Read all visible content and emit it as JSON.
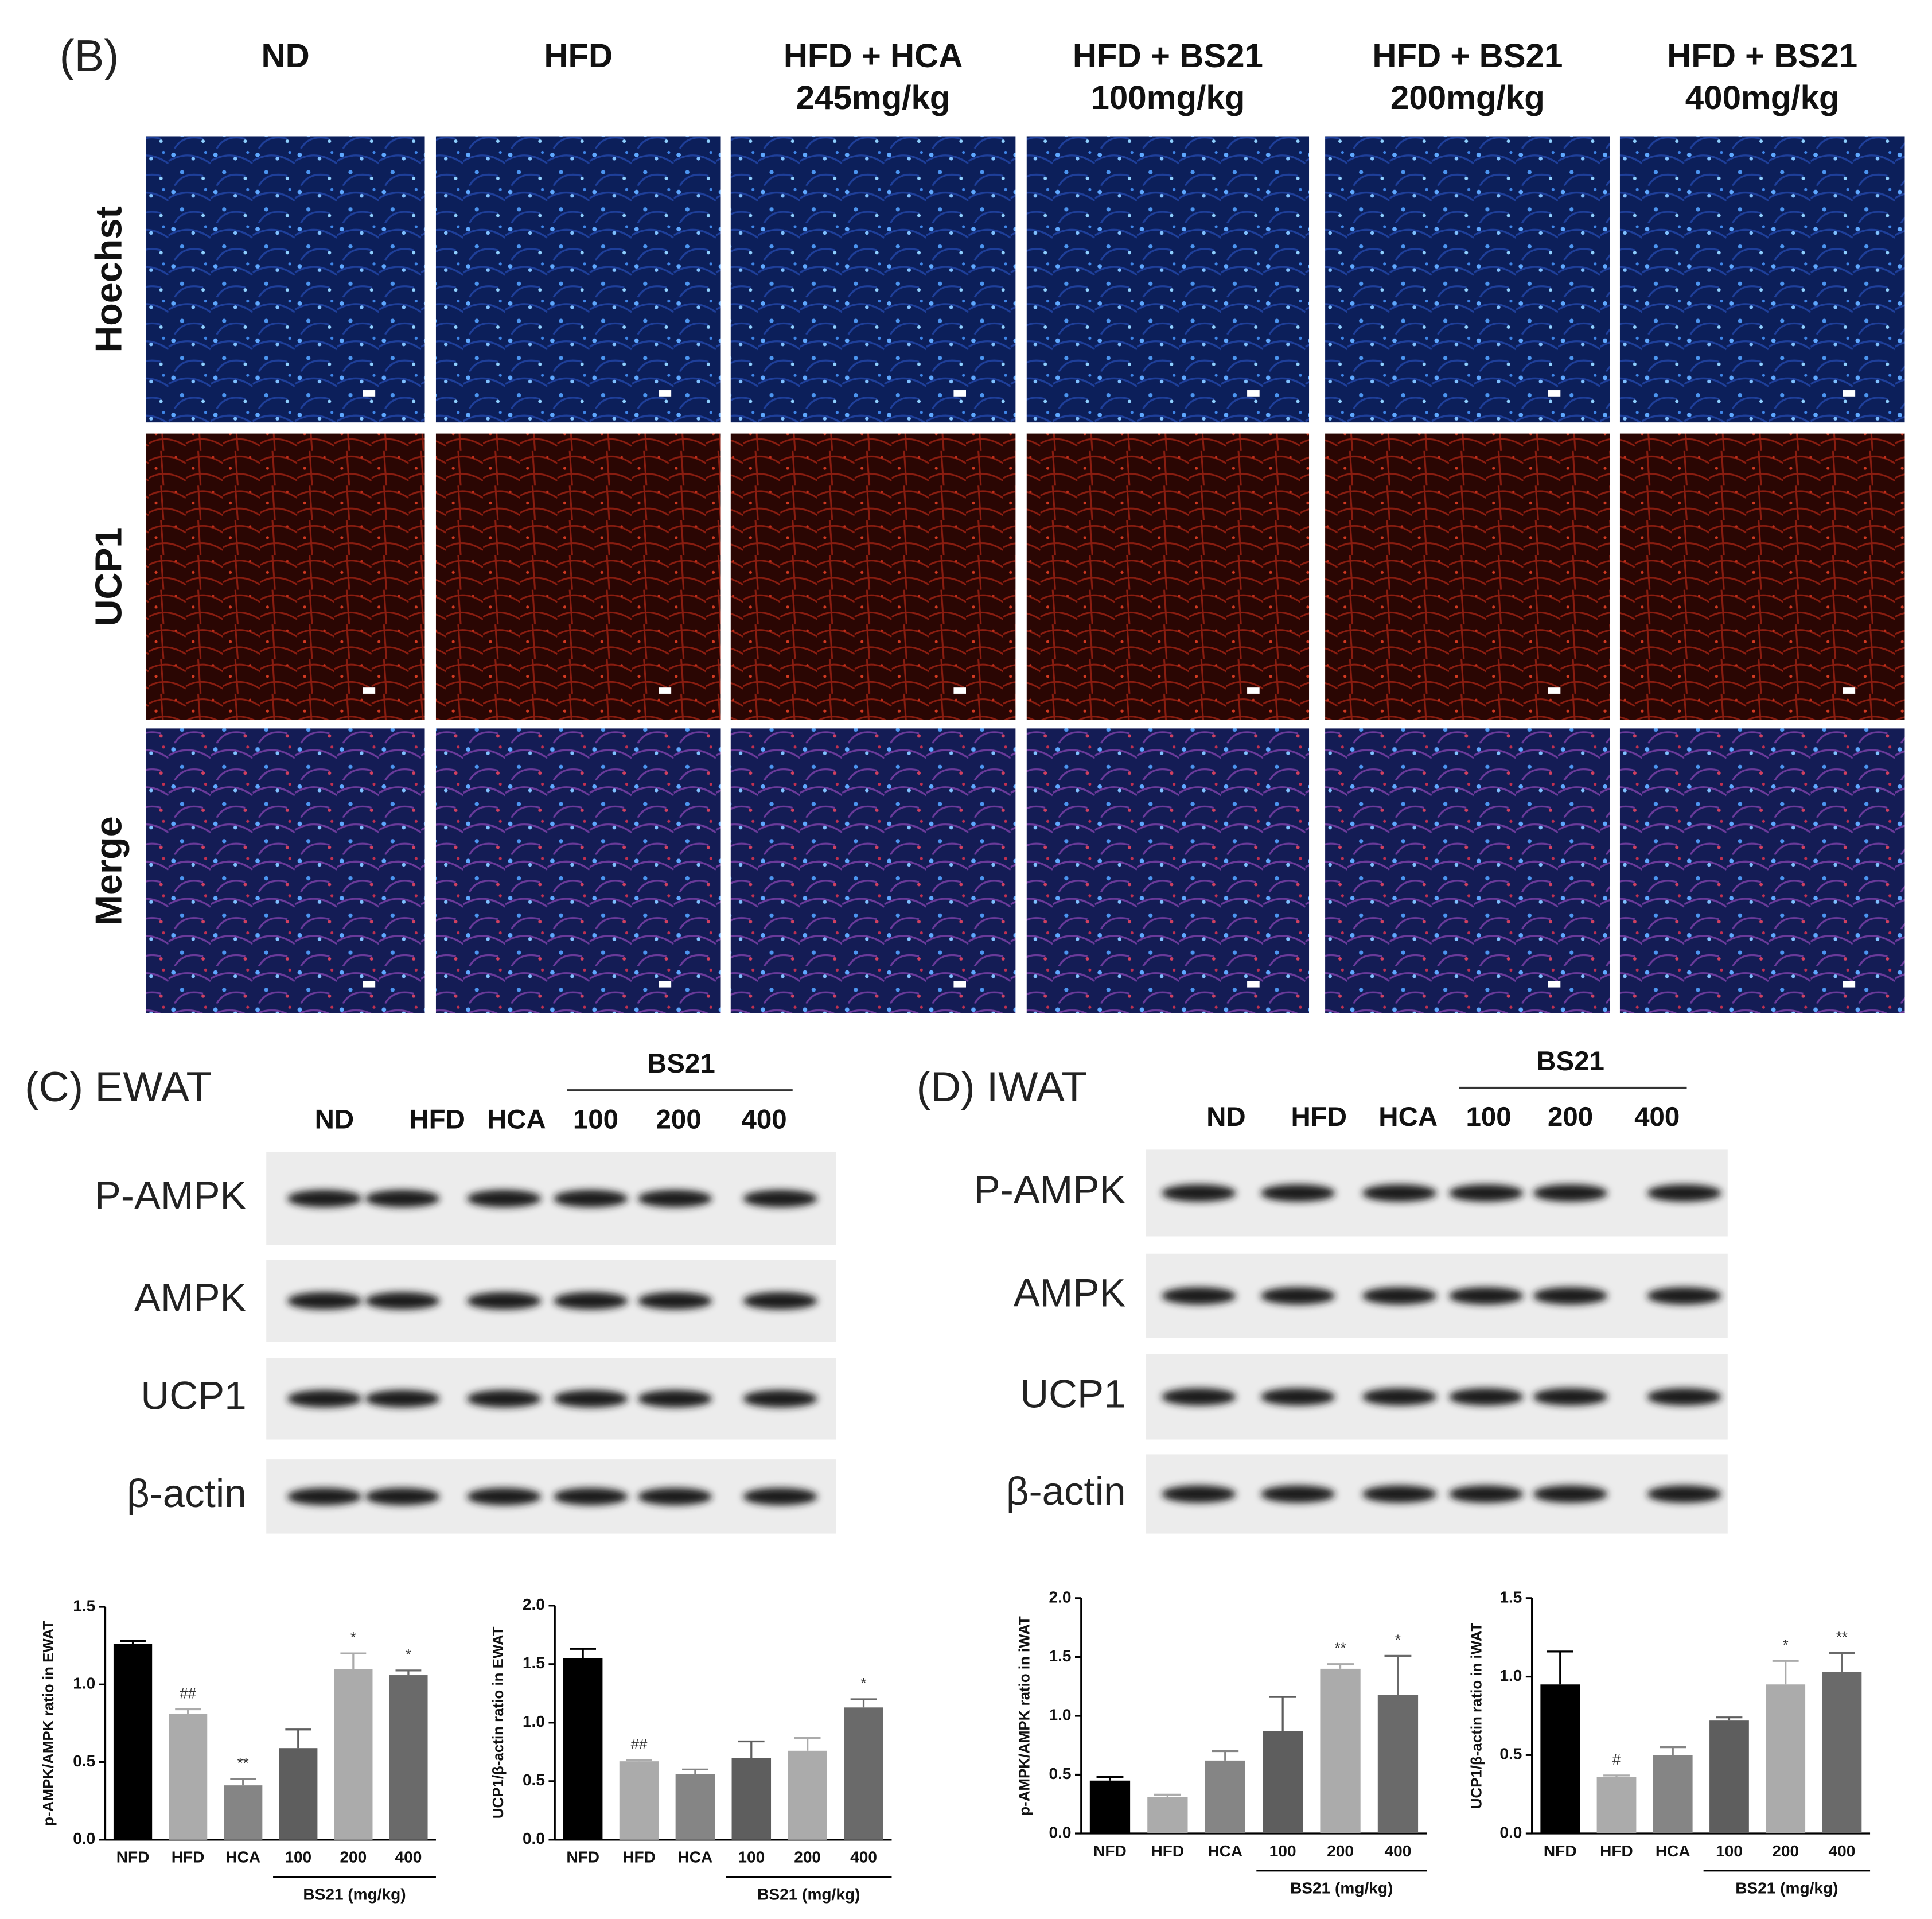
{
  "panel_b": {
    "label": "(B)",
    "columns": [
      [
        "ND"
      ],
      [
        "HFD"
      ],
      [
        "HFD + HCA",
        "245mg/kg"
      ],
      [
        "HFD + BS21",
        "100mg/kg"
      ],
      [
        "HFD + BS21",
        "200mg/kg"
      ],
      [
        "HFD + BS21",
        "400mg/kg"
      ]
    ],
    "rows": [
      "Hoechst",
      "UCP1",
      "Merge"
    ]
  },
  "panel_c": {
    "label": "(C) EWAT",
    "group": "BS21",
    "lanes": [
      "ND",
      "HFD",
      "HCA",
      "100",
      "200",
      "400"
    ],
    "rows": [
      "P-AMPK",
      "AMPK",
      "UCP1",
      "β-actin"
    ]
  },
  "panel_d": {
    "label": "(D) IWAT",
    "group": "BS21",
    "lanes": [
      "ND",
      "HFD",
      "HCA",
      "100",
      "200",
      "400"
    ],
    "rows": [
      "P-AMPK",
      "AMPK",
      "UCP1",
      "β-actin"
    ]
  },
  "chart_data": [
    {
      "type": "bar",
      "y_label": "p-AMPK/AMPK ratio in EWAT",
      "group_label": "BS21 (mg/kg)",
      "categories": [
        "NFD",
        "HFD",
        "HCA",
        "100",
        "200",
        "400"
      ],
      "values": [
        1.26,
        0.81,
        0.35,
        0.59,
        1.1,
        1.06
      ],
      "errors": [
        0.02,
        0.03,
        0.04,
        0.12,
        0.1,
        0.03
      ],
      "significance": [
        null,
        "##",
        "**",
        null,
        "*",
        "*"
      ],
      "colors": [
        "#000000",
        "#ababab",
        "#858585",
        "#5e5e5e",
        "#ababab",
        "#6a6a6a"
      ],
      "ylim": [
        0,
        1.5
      ],
      "yticks": [
        {
          "value": 0,
          "label": "0.0"
        },
        0.5,
        {
          "value": 1,
          "label": "1.0"
        },
        1.5
      ]
    },
    {
      "type": "bar",
      "y_label": "UCP1/β-actin ratio in EWAT",
      "group_label": "BS21 (mg/kg)",
      "categories": [
        "NFD",
        "HFD",
        "HCA",
        "100",
        "200",
        "400"
      ],
      "values": [
        1.55,
        0.67,
        0.56,
        0.7,
        0.76,
        1.13
      ],
      "errors": [
        0.08,
        0.01,
        0.04,
        0.14,
        0.11,
        0.07
      ],
      "significance": [
        null,
        "##",
        null,
        null,
        null,
        "*"
      ],
      "colors": [
        "#000000",
        "#ababab",
        "#858585",
        "#5e5e5e",
        "#ababab",
        "#6a6a6a"
      ],
      "ylim": [
        0,
        2
      ],
      "yticks": [
        {
          "value": 0,
          "label": "0.0"
        },
        0.5,
        {
          "value": 1,
          "label": "1.0"
        },
        1.5,
        {
          "value": 2,
          "label": "2.0"
        }
      ]
    },
    {
      "type": "bar",
      "y_label": "p-AMPK/AMPK ratio in iWAT",
      "group_label": "BS21 (mg/kg)",
      "categories": [
        "NFD",
        "HFD",
        "HCA",
        "100",
        "200",
        "400"
      ],
      "values": [
        0.45,
        0.31,
        0.62,
        0.87,
        1.4,
        1.18
      ],
      "errors": [
        0.03,
        0.02,
        0.08,
        0.29,
        0.04,
        0.33
      ],
      "significance": [
        null,
        null,
        null,
        null,
        "**",
        "*"
      ],
      "colors": [
        "#000000",
        "#ababab",
        "#858585",
        "#5e5e5e",
        "#ababab",
        "#6a6a6a"
      ],
      "ylim": [
        0,
        2
      ],
      "yticks": [
        {
          "value": 0,
          "label": "0.0"
        },
        0.5,
        {
          "value": 1,
          "label": "1.0"
        },
        1.5,
        {
          "value": 2,
          "label": "2.0"
        }
      ]
    },
    {
      "type": "bar",
      "y_label": "UCP1/β-actin ratio in iWAT",
      "group_label": "BS21 (mg/kg)",
      "categories": [
        "NFD",
        "HFD",
        "HCA",
        "100",
        "200",
        "400"
      ],
      "values": [
        0.95,
        0.36,
        0.5,
        0.72,
        0.95,
        1.03
      ],
      "errors": [
        0.21,
        0.01,
        0.05,
        0.02,
        0.15,
        0.12
      ],
      "significance": [
        null,
        "#",
        null,
        null,
        "*",
        "**"
      ],
      "colors": [
        "#000000",
        "#ababab",
        "#858585",
        "#5e5e5e",
        "#ababab",
        "#6a6a6a"
      ],
      "ylim": [
        0,
        1.5
      ],
      "yticks": [
        {
          "value": 0,
          "label": "0.0"
        },
        0.5,
        {
          "value": 1,
          "label": "1.0"
        },
        1.5
      ]
    }
  ]
}
